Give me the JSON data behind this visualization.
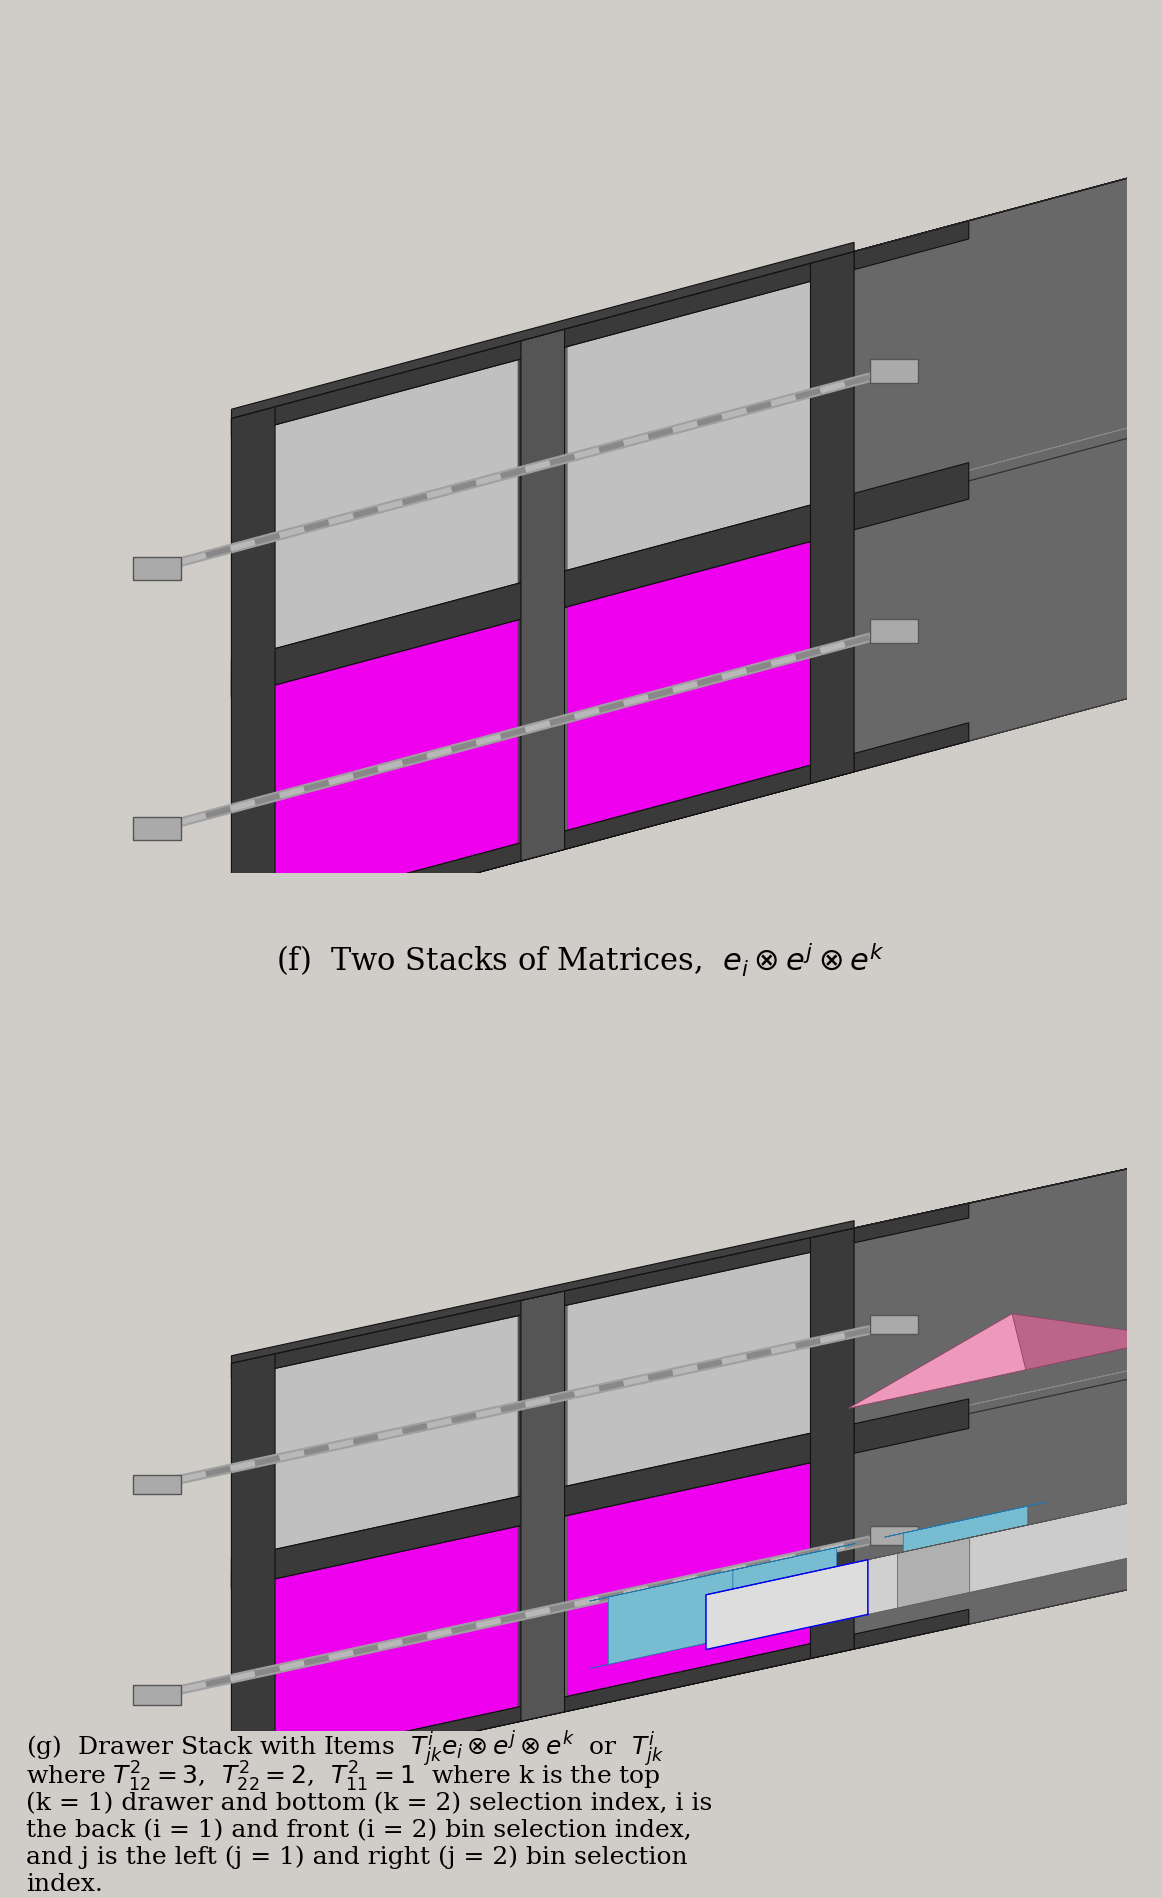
{
  "bg_outer": "#d0cdc8",
  "bg_image": "#cbcac6",
  "gray_vdark": "#2a2a2a",
  "gray_dark": "#404040",
  "gray_mid": "#686868",
  "gray_med2": "#808080",
  "gray_light": "#a8a8a8",
  "gray_lighter": "#c0c0c0",
  "gray_panel": "#d8d8d8",
  "magenta": "#ee00ee",
  "blue_cyl": "#78bcd2",
  "white_support": "#f0f0f0",
  "screw_color": "#b0b0b0",
  "caption_f": "(f)  Two Stacks of Matrices,  $e_i \\otimes e^j \\otimes e^k$",
  "caption_g": [
    "(g)  Drawer Stack with Items  $T^i_{jk}e_i \\otimes e^j \\otimes e^k$  or  $T^i_{jk}$",
    "where $T^2_{12} = 3$,  $T^2_{22} = 2$,  $T^2_{11} = 1$  where k is the top",
    "(k = 1) drawer and bottom (k = 2) selection index, i is",
    "the back (i = 1) and front (i = 2) bin selection index,",
    "and j is the left (j = 1) and right (j = 2) bin selection",
    "index."
  ],
  "fig_font_size": 22,
  "cap_font_size": 18
}
